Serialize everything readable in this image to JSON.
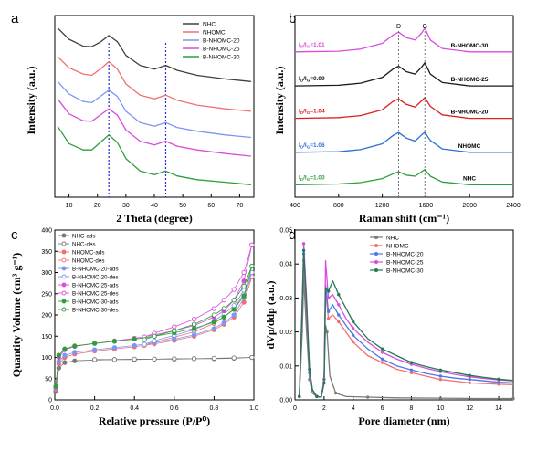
{
  "chart_data": [
    {
      "panel": "a",
      "type": "line",
      "xlabel": "2 Theta (degree)",
      "ylabel": "Intensity (a.u.)",
      "xlim": [
        5,
        75
      ],
      "xticks": [
        "10",
        "20",
        "30",
        "40",
        "50",
        "60",
        "70"
      ],
      "series": [
        {
          "name": "NHC",
          "color": "#404040",
          "x": [
            6,
            10,
            15,
            18,
            21,
            24,
            27,
            30,
            35,
            40,
            44,
            48,
            55,
            65,
            74
          ],
          "y": [
            8.45,
            8.0,
            7.72,
            7.7,
            7.88,
            8.15,
            7.9,
            7.35,
            6.95,
            6.8,
            6.95,
            6.75,
            6.55,
            6.4,
            6.3
          ]
        },
        {
          "name": "NHOMC",
          "color": "#f26f6f",
          "x": [
            6,
            10,
            15,
            18,
            21,
            24,
            27,
            30,
            35,
            40,
            44,
            48,
            55,
            65,
            74
          ],
          "y": [
            7.3,
            6.85,
            6.6,
            6.55,
            6.8,
            7.1,
            6.8,
            6.2,
            5.75,
            5.6,
            5.75,
            5.55,
            5.35,
            5.2,
            5.1
          ]
        },
        {
          "name": "B-NHOMC-20",
          "color": "#7b97f5",
          "x": [
            6,
            10,
            15,
            18,
            21,
            24,
            27,
            30,
            35,
            40,
            44,
            48,
            55,
            65,
            74
          ],
          "y": [
            6.3,
            5.8,
            5.5,
            5.45,
            5.7,
            5.95,
            5.7,
            5.1,
            4.65,
            4.5,
            4.65,
            4.45,
            4.3,
            4.15,
            4.05
          ]
        },
        {
          "name": "B-NHOMC-25",
          "color": "#d94ddc",
          "x": [
            6,
            10,
            15,
            18,
            21,
            24,
            27,
            30,
            35,
            40,
            44,
            48,
            55,
            65,
            74
          ],
          "y": [
            5.6,
            5.0,
            4.72,
            4.7,
            4.95,
            5.2,
            4.95,
            4.35,
            3.9,
            3.75,
            3.9,
            3.7,
            3.55,
            3.4,
            3.3
          ]
        },
        {
          "name": "B-NHOMC-30",
          "color": "#2e9e3a",
          "x": [
            6,
            10,
            15,
            18,
            21,
            24,
            27,
            30,
            35,
            40,
            44,
            48,
            55,
            65,
            74
          ],
          "y": [
            4.5,
            3.8,
            3.55,
            3.55,
            3.85,
            4.15,
            3.85,
            3.2,
            2.7,
            2.55,
            2.7,
            2.5,
            2.35,
            2.25,
            2.15
          ]
        }
      ],
      "reference_lines_x": [
        24,
        44
      ]
    },
    {
      "panel": "b",
      "type": "line",
      "xlabel": "Raman shift (cm⁻¹)",
      "ylabel": "Intensity (a.u.)",
      "xlim": [
        400,
        2400
      ],
      "xticks": [
        "400",
        "800",
        "1200",
        "1600",
        "2000",
        "2400"
      ],
      "peak_labels": [
        "D",
        "G"
      ],
      "series": [
        {
          "name": "B-NHOMC-30",
          "color": "#d94ddc",
          "ratio_label": "=1.01",
          "x": [
            400,
            800,
            1000,
            1200,
            1300,
            1350,
            1420,
            1500,
            1560,
            1590,
            1640,
            1750,
            2000,
            2400
          ],
          "y": [
            4.2,
            4.22,
            4.28,
            4.45,
            4.7,
            4.78,
            4.62,
            4.55,
            4.75,
            4.9,
            4.55,
            4.3,
            4.2,
            4.2
          ]
        },
        {
          "name": "B-NHOMC-25",
          "color": "#1a1a1a",
          "ratio_label": "=0.99",
          "x": [
            400,
            800,
            1000,
            1200,
            1300,
            1350,
            1420,
            1500,
            1560,
            1590,
            1640,
            1750,
            2000,
            2400
          ],
          "y": [
            3.2,
            3.22,
            3.28,
            3.45,
            3.7,
            3.78,
            3.62,
            3.55,
            3.75,
            3.88,
            3.55,
            3.3,
            3.2,
            3.2
          ]
        },
        {
          "name": "B-NHOMC-20",
          "color": "#d92020",
          "ratio_label": "=1.04",
          "x": [
            400,
            800,
            1000,
            1200,
            1300,
            1350,
            1420,
            1500,
            1560,
            1590,
            1640,
            1750,
            2000,
            2400
          ],
          "y": [
            2.25,
            2.27,
            2.33,
            2.5,
            2.75,
            2.82,
            2.66,
            2.58,
            2.76,
            2.86,
            2.6,
            2.35,
            2.25,
            2.25
          ]
        },
        {
          "name": "NHOMC",
          "color": "#2c6fd6",
          "ratio_label": "=1.06",
          "x": [
            400,
            800,
            1000,
            1200,
            1300,
            1350,
            1420,
            1500,
            1560,
            1590,
            1640,
            1750,
            2000,
            2400
          ],
          "y": [
            1.25,
            1.27,
            1.33,
            1.5,
            1.75,
            1.83,
            1.67,
            1.58,
            1.76,
            1.84,
            1.6,
            1.35,
            1.25,
            1.25
          ]
        },
        {
          "name": "NHC",
          "color": "#2e9e3a",
          "ratio_label": "=1.00",
          "x": [
            400,
            800,
            1000,
            1200,
            1300,
            1350,
            1420,
            1500,
            1560,
            1590,
            1640,
            1750,
            2000,
            2400
          ],
          "y": [
            0.3,
            0.32,
            0.36,
            0.48,
            0.62,
            0.68,
            0.58,
            0.55,
            0.68,
            0.75,
            0.55,
            0.38,
            0.3,
            0.3
          ]
        }
      ]
    },
    {
      "panel": "c",
      "type": "scatter",
      "xlabel": "Relative pressure (P/P⁰)",
      "ylabel": "Quantity Volume (cm³ g⁻¹)",
      "xlim": [
        0,
        1.0
      ],
      "ylim": [
        0,
        400
      ],
      "xticks": [
        "0.0",
        "0.2",
        "0.4",
        "0.6",
        "0.8",
        "1.0"
      ],
      "yticks": [
        "0",
        "50",
        "100",
        "150",
        "200",
        "250",
        "300",
        "350",
        "400"
      ],
      "series": [
        {
          "name": "NHC-ads",
          "color": "#7a7a7a",
          "filled": true,
          "x": [
            0.005,
            0.02,
            0.05,
            0.1,
            0.2,
            0.3,
            0.4,
            0.5,
            0.6,
            0.7,
            0.8,
            0.9,
            0.99
          ],
          "y": [
            20,
            75,
            88,
            92,
            94,
            95,
            95,
            96,
            96,
            97,
            97,
            98,
            100
          ]
        },
        {
          "name": "NHC-des",
          "color": "#7a7a7a",
          "filled": false,
          "x": [
            0.99,
            0.9,
            0.8,
            0.7,
            0.6,
            0.5,
            0.4,
            0.3,
            0.2
          ],
          "y": [
            100,
            99,
            98,
            97,
            97,
            96,
            96,
            95,
            95
          ]
        },
        {
          "name": "NHOMC-ads",
          "color": "#f26f6f",
          "filled": true,
          "x": [
            0.005,
            0.02,
            0.05,
            0.1,
            0.2,
            0.3,
            0.4,
            0.5,
            0.6,
            0.7,
            0.8,
            0.85,
            0.9,
            0.95,
            0.99
          ],
          "y": [
            25,
            85,
            100,
            108,
            115,
            120,
            125,
            132,
            140,
            150,
            165,
            178,
            195,
            230,
            290
          ]
        },
        {
          "name": "NHOMC-des",
          "color": "#f26f6f",
          "filled": false,
          "x": [
            0.99,
            0.95,
            0.9,
            0.85,
            0.8,
            0.7,
            0.6,
            0.5,
            0.45
          ],
          "y": [
            290,
            250,
            215,
            195,
            180,
            160,
            148,
            135,
            128
          ]
        },
        {
          "name": "B-NHOMC-20-ads",
          "color": "#7b97f5",
          "filled": true,
          "x": [
            0.005,
            0.02,
            0.05,
            0.1,
            0.2,
            0.3,
            0.4,
            0.5,
            0.6,
            0.7,
            0.8,
            0.85,
            0.9,
            0.95,
            0.99
          ],
          "y": [
            28,
            90,
            105,
            112,
            118,
            123,
            128,
            135,
            143,
            153,
            168,
            182,
            200,
            240,
            300
          ]
        },
        {
          "name": "B-NHOMC-20-des",
          "color": "#7b97f5",
          "filled": false,
          "x": [
            0.99,
            0.95,
            0.9,
            0.85,
            0.8,
            0.7,
            0.6,
            0.5,
            0.45
          ],
          "y": [
            300,
            258,
            222,
            202,
            186,
            165,
            152,
            139,
            131
          ]
        },
        {
          "name": "B-NHOMC-25-ads",
          "color": "#d94ddc",
          "filled": true,
          "x": [
            0.005,
            0.02,
            0.05,
            0.1,
            0.2,
            0.3,
            0.4,
            0.5,
            0.6,
            0.7,
            0.8,
            0.85,
            0.9,
            0.95,
            0.99
          ],
          "y": [
            30,
            100,
            118,
            126,
            133,
            139,
            145,
            153,
            163,
            175,
            195,
            210,
            235,
            280,
            365
          ]
        },
        {
          "name": "B-NHOMC-25-des",
          "color": "#d94ddc",
          "filled": false,
          "x": [
            0.99,
            0.95,
            0.9,
            0.85,
            0.8,
            0.7,
            0.6,
            0.5,
            0.45
          ],
          "y": [
            365,
            300,
            260,
            235,
            215,
            190,
            172,
            157,
            148
          ]
        },
        {
          "name": "B-NHOMC-30-ads",
          "color": "#2e9e3a",
          "filled": true,
          "x": [
            0.005,
            0.02,
            0.05,
            0.1,
            0.2,
            0.3,
            0.4,
            0.5,
            0.6,
            0.7,
            0.8,
            0.85,
            0.9,
            0.95,
            0.99
          ],
          "y": [
            32,
            105,
            120,
            127,
            133,
            138,
            143,
            150,
            158,
            168,
            183,
            195,
            213,
            245,
            315
          ]
        },
        {
          "name": "B-NHOMC-30-des",
          "color": "#2e9e3a",
          "filled": false,
          "x": [
            0.99,
            0.95,
            0.9,
            0.85,
            0.8,
            0.7,
            0.6,
            0.5,
            0.45
          ],
          "y": [
            315,
            268,
            235,
            215,
            200,
            178,
            163,
            150,
            142
          ]
        }
      ]
    },
    {
      "panel": "d",
      "type": "line",
      "xlabel": "Pore diameter (nm)",
      "ylabel": "dVp/ddp (a.u.)",
      "xlim": [
        0,
        15
      ],
      "ylim": [
        0,
        0.05
      ],
      "xticks": [
        "0",
        "2",
        "4",
        "6",
        "8",
        "10",
        "12",
        "14"
      ],
      "yticks": [
        "0.00",
        "0.01",
        "0.02",
        "0.03",
        "0.04",
        "0.05"
      ],
      "series": [
        {
          "name": "NHC",
          "color": "#7a7a7a",
          "x": [
            0.3,
            0.5,
            0.6,
            0.8,
            1.0,
            1.2,
            1.5,
            1.8,
            2.0,
            2.1,
            2.2,
            2.4,
            2.8,
            3.5,
            5,
            7,
            10,
            12.5,
            15
          ],
          "y": [
            0.001,
            0.02,
            0.036,
            0.02,
            0.006,
            0.002,
            0.001,
            0.0008,
            0.006,
            0.022,
            0.02,
            0.007,
            0.002,
            0.001,
            0.0008,
            0.0006,
            0.0005,
            0.0004,
            0.0004
          ]
        },
        {
          "name": "NHOMC",
          "color": "#f26f6f",
          "x": [
            0.3,
            0.5,
            0.6,
            0.8,
            1.0,
            1.2,
            1.5,
            1.8,
            2.0,
            2.1,
            2.3,
            2.6,
            3.0,
            3.5,
            4,
            5,
            6,
            7,
            8,
            9,
            10,
            11,
            12,
            13,
            14,
            15
          ],
          "y": [
            0.001,
            0.025,
            0.041,
            0.025,
            0.008,
            0.003,
            0.001,
            0.0008,
            0.005,
            0.032,
            0.024,
            0.025,
            0.023,
            0.02,
            0.017,
            0.013,
            0.011,
            0.009,
            0.008,
            0.007,
            0.006,
            0.0055,
            0.005,
            0.0048,
            0.0046,
            0.0045
          ]
        },
        {
          "name": "B-NHOMC-20",
          "color": "#4a78e8",
          "x": [
            0.3,
            0.5,
            0.6,
            0.8,
            1.0,
            1.2,
            1.5,
            1.8,
            2.0,
            2.1,
            2.3,
            2.6,
            3.0,
            3.5,
            4,
            5,
            6,
            7,
            8,
            9,
            10,
            11,
            12,
            13,
            14,
            15
          ],
          "y": [
            0.001,
            0.027,
            0.043,
            0.027,
            0.008,
            0.003,
            0.001,
            0.0008,
            0.005,
            0.034,
            0.026,
            0.028,
            0.025,
            0.022,
            0.019,
            0.015,
            0.012,
            0.01,
            0.0088,
            0.0078,
            0.007,
            0.0064,
            0.006,
            0.0056,
            0.0052,
            0.005
          ]
        },
        {
          "name": "B-NHOMC-25",
          "color": "#d94ddc",
          "x": [
            0.3,
            0.5,
            0.6,
            0.8,
            1.0,
            1.2,
            1.5,
            1.8,
            2.0,
            2.1,
            2.3,
            2.6,
            3.0,
            3.5,
            4,
            5,
            6,
            7,
            8,
            9,
            10,
            11,
            12,
            13,
            14,
            15
          ],
          "y": [
            0.001,
            0.03,
            0.046,
            0.03,
            0.009,
            0.003,
            0.001,
            0.0008,
            0.006,
            0.041,
            0.03,
            0.031,
            0.028,
            0.024,
            0.021,
            0.017,
            0.014,
            0.012,
            0.0105,
            0.0093,
            0.0083,
            0.0075,
            0.0068,
            0.0063,
            0.0059,
            0.0056
          ]
        },
        {
          "name": "B-NHOMC-30",
          "color": "#1f7a55",
          "x": [
            0.3,
            0.5,
            0.6,
            0.8,
            1.0,
            1.2,
            1.5,
            1.8,
            2.0,
            2.1,
            2.3,
            2.6,
            3.0,
            3.5,
            4,
            5,
            6,
            7,
            8,
            9,
            10,
            11,
            12,
            13,
            14,
            15
          ],
          "y": [
            0.001,
            0.028,
            0.044,
            0.028,
            0.009,
            0.003,
            0.001,
            0.0008,
            0.005,
            0.033,
            0.032,
            0.035,
            0.031,
            0.027,
            0.023,
            0.018,
            0.015,
            0.013,
            0.011,
            0.0098,
            0.0088,
            0.008,
            0.0072,
            0.0066,
            0.0061,
            0.0057
          ]
        }
      ]
    }
  ]
}
